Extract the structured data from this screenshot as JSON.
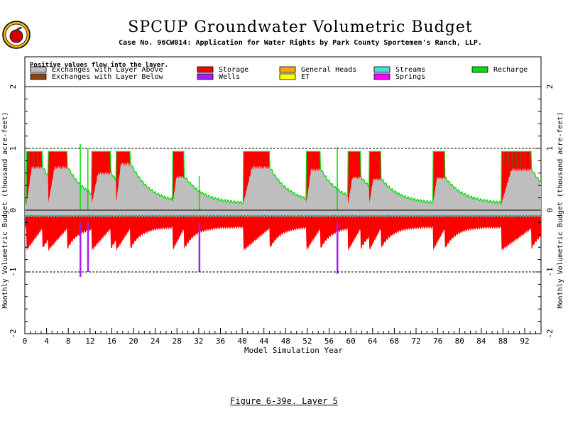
{
  "logo": {
    "icon": "apple-logo-icon",
    "colors": [
      "#f4b000",
      "#d00000",
      "#1a7a1a"
    ]
  },
  "figure_caption": "Figure 6-39e.  Layer 5",
  "chart_data": {
    "type": "area",
    "title": "SPCUP Groundwater Volumetric Budget",
    "subtitle": "Case No. 96CW014: Application for Water Rights by Park County Sportemen's Ranch, LLP.",
    "xlabel": "Model Simulation Year",
    "ylabel": "Monthly Volumetric Budget (thousand acre-feet)",
    "xlim": [
      0,
      95
    ],
    "ylim": [
      -2,
      2
    ],
    "xticks": [
      0,
      4,
      8,
      12,
      16,
      20,
      24,
      28,
      32,
      36,
      40,
      44,
      48,
      52,
      56,
      60,
      64,
      68,
      72,
      76,
      80,
      84,
      88,
      92
    ],
    "yticks": [
      -2,
      -1,
      0,
      1,
      2
    ],
    "reference_lines": [
      1,
      -1
    ],
    "legend": {
      "note": "Positive values flow into the layer.",
      "placement": "top",
      "entries": [
        {
          "name": "Exchanges with Layer Above",
          "color": "#bebebe"
        },
        {
          "name": "Exchanges with Layer Below",
          "color": "#8b4513"
        },
        {
          "name": "Storage",
          "color": "#ff0000"
        },
        {
          "name": "Wells",
          "color": "#a020f0"
        },
        {
          "name": "General Heads",
          "color": "#ffa500"
        },
        {
          "name": "ET",
          "color": "#ffff00"
        },
        {
          "name": "Streams",
          "color": "#40e0e0"
        },
        {
          "name": "Springs",
          "color": "#ff00ff"
        },
        {
          "name": "Recharge",
          "color": "#00e000"
        }
      ]
    },
    "pumping_periods": [
      {
        "start": 0.3,
        "end": 3.2,
        "peak": 0.72,
        "storage_top": 0.95
      },
      {
        "start": 4.3,
        "end": 7.8,
        "peak": 0.72,
        "storage_top": 0.95
      },
      {
        "start": 12.3,
        "end": 15.8,
        "peak": 0.62,
        "storage_top": 0.95
      },
      {
        "start": 16.8,
        "end": 19.4,
        "peak": 0.78,
        "storage_top": 0.95
      },
      {
        "start": 27.2,
        "end": 29.3,
        "peak": 0.56,
        "storage_top": 0.95
      },
      {
        "start": 40.2,
        "end": 45.0,
        "peak": 0.72,
        "storage_top": 0.95
      },
      {
        "start": 51.8,
        "end": 54.4,
        "peak": 0.68,
        "storage_top": 0.95
      },
      {
        "start": 59.5,
        "end": 61.8,
        "peak": 0.55,
        "storage_top": 0.95
      },
      {
        "start": 63.4,
        "end": 65.5,
        "peak": 0.52,
        "storage_top": 0.95
      },
      {
        "start": 75.1,
        "end": 77.3,
        "peak": 0.54,
        "storage_top": 0.95
      },
      {
        "start": 87.7,
        "end": 93.2,
        "peak": 0.68,
        "storage_top": 0.95
      }
    ],
    "spikes": [
      {
        "x": 10.2,
        "top": 1.07,
        "bottom": -1.08
      },
      {
        "x": 11.6,
        "top": 1.0,
        "bottom": -1.0
      },
      {
        "x": 32.1,
        "top": 0.55,
        "bottom": -1.0
      },
      {
        "x": 57.5,
        "top": 1.02,
        "bottom": -1.03
      }
    ],
    "baseline": {
      "above": 0.1,
      "below": -0.28,
      "recession_weeks": 3.5
    }
  }
}
